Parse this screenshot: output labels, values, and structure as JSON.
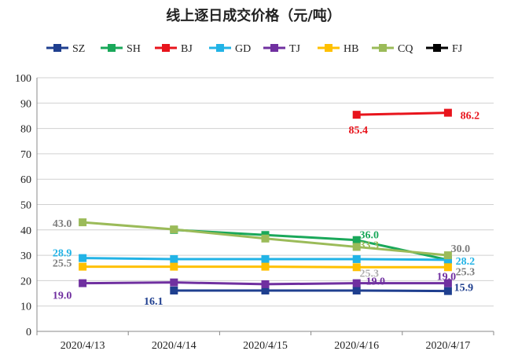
{
  "chart_data": {
    "type": "line",
    "title": "线上逐日成交价格（元/吨）",
    "categories": [
      "2020/4/13",
      "2020/4/14",
      "2020/4/15",
      "2020/4/16",
      "2020/4/17"
    ],
    "ylim": [
      0,
      100
    ],
    "yticks": [
      0,
      10,
      20,
      30,
      40,
      50,
      60,
      70,
      80,
      90,
      100
    ],
    "grid": true,
    "legend_position": "top",
    "series": [
      {
        "name": "SZ",
        "color": "#1f3f8f",
        "values": [
          null,
          16.1,
          16.1,
          16.1,
          15.9
        ]
      },
      {
        "name": "SH",
        "color": "#1aa85a",
        "values": [
          null,
          40.0,
          38.0,
          36.0,
          28.2
        ]
      },
      {
        "name": "BJ",
        "color": "#e8141c",
        "values": [
          null,
          null,
          null,
          85.4,
          86.2
        ]
      },
      {
        "name": "GD",
        "color": "#22b3e6",
        "values": [
          28.9,
          28.5,
          28.5,
          28.5,
          28.2
        ]
      },
      {
        "name": "TJ",
        "color": "#7030a0",
        "values": [
          19.0,
          19.3,
          18.6,
          19.0,
          19.0
        ]
      },
      {
        "name": "HB",
        "color": "#ffc000",
        "values": [
          25.5,
          25.5,
          25.5,
          25.3,
          25.3
        ]
      },
      {
        "name": "CQ",
        "color": "#9bbb59",
        "values": [
          43.0,
          40.2,
          36.6,
          33.3,
          30.0
        ]
      },
      {
        "name": "FJ",
        "color": "#000000",
        "values": [
          null,
          null,
          null,
          null,
          null
        ]
      }
    ],
    "data_labels": [
      {
        "text": "43.0",
        "series": "CQ",
        "index": 0,
        "color": "#7f7f7f"
      },
      {
        "text": "28.9",
        "series": "GD",
        "index": 0,
        "color": "#22b3e6"
      },
      {
        "text": "25.5",
        "series": "HB",
        "index": 0,
        "color": "#7f7f7f"
      },
      {
        "text": "19.0",
        "series": "TJ",
        "index": 0,
        "color": "#7030a0"
      },
      {
        "text": "16.1",
        "series": "SZ",
        "index": 1,
        "color": "#1f3f8f"
      },
      {
        "text": "36.0",
        "series": "SH",
        "index": 3,
        "color": "#1aa85a"
      },
      {
        "text": "33.3",
        "series": "CQ",
        "index": 3,
        "color": "#9bbb59"
      },
      {
        "text": "19.0",
        "series": "TJ",
        "index": 3,
        "color": "#7030a0"
      },
      {
        "text": "25.3",
        "series": "HB",
        "index": 3,
        "color": "#b0b0b0"
      },
      {
        "text": "85.4",
        "series": "BJ",
        "index": 3,
        "color": "#e8141c"
      },
      {
        "text": "86.2",
        "series": "BJ",
        "index": 4,
        "color": "#e8141c"
      },
      {
        "text": "30.0",
        "series": "CQ",
        "index": 4,
        "color": "#7f7f7f"
      },
      {
        "text": "28.2",
        "series": "SH",
        "index": 4,
        "color": "#22b3e6"
      },
      {
        "text": "19.0",
        "series": "TJ",
        "index": 4,
        "color": "#7030a0"
      },
      {
        "text": "25.3",
        "series": "HB",
        "index": 4,
        "color": "#7f7f7f"
      },
      {
        "text": "15.9",
        "series": "SZ",
        "index": 4,
        "color": "#1f3f8f"
      }
    ]
  }
}
